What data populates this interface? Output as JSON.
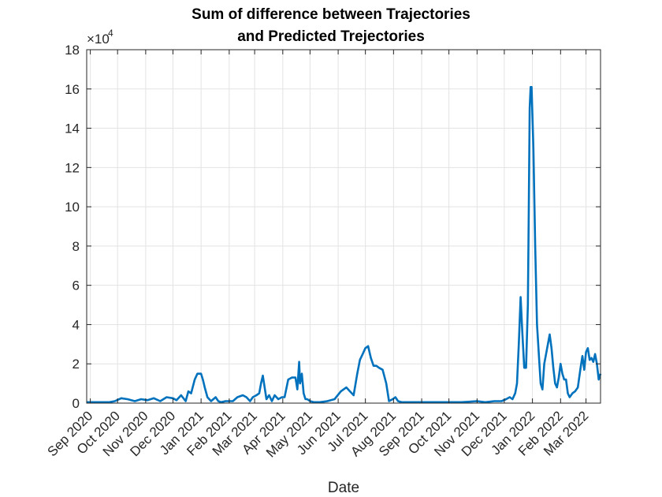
{
  "chart_data": {
    "type": "line",
    "title": [
      "Sum of difference between Trajectories",
      "and Predicted Trejectories"
    ],
    "xlabel": "Date",
    "ylabel": "",
    "y_exponent_label": "×10",
    "y_exponent_power": "4",
    "ylim": [
      0,
      18
    ],
    "xlim": [
      "2020-08-28",
      "2022-03-17"
    ],
    "yticks": [
      0,
      2,
      4,
      6,
      8,
      10,
      12,
      14,
      16,
      18
    ],
    "ytick_labels": [
      "0",
      "2",
      "4",
      "6",
      "8",
      "10",
      "12",
      "14",
      "16",
      "18"
    ],
    "xticks": [
      "2020-09-01",
      "2020-10-01",
      "2020-11-01",
      "2020-12-01",
      "2021-01-01",
      "2021-02-01",
      "2021-03-01",
      "2021-04-01",
      "2021-05-01",
      "2021-06-01",
      "2021-07-01",
      "2021-08-01",
      "2021-09-01",
      "2021-10-01",
      "2021-11-01",
      "2021-12-01",
      "2022-01-01",
      "2022-02-01",
      "2022-03-01"
    ],
    "xtick_labels": [
      "Sep 2020",
      "Oct 2020",
      "Nov 2020",
      "Dec 2020",
      "Jan 2021",
      "Feb 2021",
      "Mar 2021",
      "Apr 2021",
      "May 2021",
      "Jun 2021",
      "Jul 2021",
      "Aug 2021",
      "Sep 2021",
      "Oct 2021",
      "Nov 2021",
      "Dec 2021",
      "Jan 2022",
      "Feb 2022",
      "Mar 2022"
    ],
    "grid": true,
    "line_color": "#0072BD",
    "series": [
      {
        "x": [
          "2020-08-28",
          "2020-09-05",
          "2020-09-15",
          "2020-09-22",
          "2020-09-28",
          "2020-10-05",
          "2020-10-12",
          "2020-10-20",
          "2020-10-27",
          "2020-11-03",
          "2020-11-10",
          "2020-11-17",
          "2020-11-24",
          "2020-12-01",
          "2020-12-05",
          "2020-12-10",
          "2020-12-15",
          "2020-12-18",
          "2020-12-21",
          "2020-12-25",
          "2020-12-28",
          "2021-01-01",
          "2021-01-03",
          "2021-01-05",
          "2021-01-08",
          "2021-01-12",
          "2021-01-17",
          "2021-01-20",
          "2021-01-23",
          "2021-01-28",
          "2021-02-05",
          "2021-02-10",
          "2021-02-16",
          "2021-02-20",
          "2021-02-24",
          "2021-02-27",
          "2021-03-03",
          "2021-03-06",
          "2021-03-08",
          "2021-03-10",
          "2021-03-12",
          "2021-03-14",
          "2021-03-17",
          "2021-03-20",
          "2021-03-23",
          "2021-03-27",
          "2021-03-31",
          "2021-04-03",
          "2021-04-07",
          "2021-04-11",
          "2021-04-15",
          "2021-04-17",
          "2021-04-19",
          "2021-04-20",
          "2021-04-22",
          "2021-04-24",
          "2021-04-26",
          "2021-04-28",
          "2021-05-01",
          "2021-05-05",
          "2021-05-12",
          "2021-05-20",
          "2021-05-28",
          "2021-06-04",
          "2021-06-10",
          "2021-06-14",
          "2021-06-18",
          "2021-06-22",
          "2021-06-25",
          "2021-06-28",
          "2021-07-01",
          "2021-07-04",
          "2021-07-07",
          "2021-07-10",
          "2021-07-13",
          "2021-07-16",
          "2021-07-20",
          "2021-07-24",
          "2021-07-27",
          "2021-07-31",
          "2021-08-03",
          "2021-08-06",
          "2021-08-10",
          "2021-08-14",
          "2021-08-20",
          "2021-09-01",
          "2021-09-15",
          "2021-10-01",
          "2021-10-15",
          "2021-11-01",
          "2021-11-10",
          "2021-11-20",
          "2021-11-28",
          "2021-12-03",
          "2021-12-07",
          "2021-12-10",
          "2021-12-13",
          "2021-12-15",
          "2021-12-17",
          "2021-12-19",
          "2021-12-21",
          "2021-12-23",
          "2021-12-25",
          "2021-12-27",
          "2021-12-28",
          "2021-12-29",
          "2021-12-30",
          "2021-12-31",
          "2022-01-02",
          "2022-01-04",
          "2022-01-06",
          "2022-01-08",
          "2022-01-10",
          "2022-01-12",
          "2022-01-14",
          "2022-01-16",
          "2022-01-18",
          "2022-01-20",
          "2022-01-22",
          "2022-01-24",
          "2022-01-26",
          "2022-01-28",
          "2022-01-30",
          "2022-02-01",
          "2022-02-03",
          "2022-02-05",
          "2022-02-07",
          "2022-02-09",
          "2022-02-11",
          "2022-02-14",
          "2022-02-17",
          "2022-02-20",
          "2022-02-23",
          "2022-02-25",
          "2022-02-27",
          "2022-03-01",
          "2022-03-03",
          "2022-03-05",
          "2022-03-07",
          "2022-03-09",
          "2022-03-11",
          "2022-03-13",
          "2022-03-15",
          "2022-03-17"
        ],
        "values": [
          0.05,
          0.05,
          0.05,
          0.05,
          0.1,
          0.25,
          0.2,
          0.1,
          0.2,
          0.15,
          0.25,
          0.1,
          0.3,
          0.25,
          0.15,
          0.4,
          0.1,
          0.6,
          0.5,
          1.2,
          1.5,
          1.5,
          1.2,
          0.8,
          0.3,
          0.1,
          0.3,
          0.1,
          0.05,
          0.1,
          0.1,
          0.3,
          0.4,
          0.3,
          0.1,
          0.3,
          0.4,
          0.5,
          1.0,
          1.4,
          0.8,
          0.2,
          0.4,
          0.1,
          0.4,
          0.2,
          0.3,
          0.3,
          1.2,
          1.3,
          1.3,
          0.7,
          2.1,
          1.0,
          1.5,
          0.5,
          0.2,
          0.2,
          0.1,
          0.05,
          0.05,
          0.1,
          0.2,
          0.6,
          0.8,
          0.6,
          0.4,
          1.5,
          2.2,
          2.5,
          2.8,
          2.9,
          2.3,
          1.9,
          1.9,
          1.8,
          1.7,
          1.0,
          0.1,
          0.2,
          0.3,
          0.1,
          0.05,
          0.05,
          0.05,
          0.05,
          0.05,
          0.05,
          0.05,
          0.1,
          0.05,
          0.1,
          0.1,
          0.2,
          0.3,
          0.2,
          0.5,
          1.0,
          3.0,
          5.4,
          3.5,
          1.8,
          1.8,
          5.0,
          10.0,
          15.0,
          16.1,
          16.1,
          13.0,
          8.0,
          4.0,
          2.5,
          1.0,
          0.7,
          2.0,
          2.5,
          3.0,
          3.5,
          2.8,
          1.8,
          1.0,
          0.8,
          1.3,
          2.0,
          1.5,
          1.2,
          1.2,
          0.5,
          0.3,
          0.5,
          0.6,
          0.8,
          1.8,
          2.4,
          1.7,
          2.6,
          2.8,
          2.2,
          2.3,
          2.1,
          2.5,
          2.0,
          1.2,
          1.5
        ]
      }
    ]
  }
}
